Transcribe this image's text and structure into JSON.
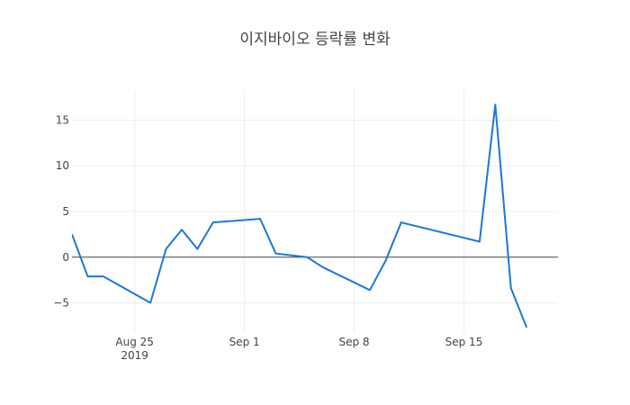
{
  "chart_data": {
    "type": "line",
    "title": "이지바이오 등락률 변화",
    "xlabel": "",
    "ylabel": "",
    "xlim": [
      "2019-08-21",
      "2019-09-21"
    ],
    "ylim": [
      -8.3,
      18.3
    ],
    "x_ticks": [
      {
        "date": "2019-08-25",
        "label": "Aug 25",
        "sublabel": "2019"
      },
      {
        "date": "2019-09-01",
        "label": "Sep 1",
        "sublabel": ""
      },
      {
        "date": "2019-09-08",
        "label": "Sep 8",
        "sublabel": ""
      },
      {
        "date": "2019-09-15",
        "label": "Sep 15",
        "sublabel": ""
      }
    ],
    "y_ticks": [
      {
        "value": -5,
        "label": "−5"
      },
      {
        "value": 0,
        "label": "0"
      },
      {
        "value": 5,
        "label": "5"
      },
      {
        "value": 10,
        "label": "10"
      },
      {
        "value": 15,
        "label": "15"
      }
    ],
    "grid": true,
    "zero_line": true,
    "color": "#1f77d4",
    "series": [
      {
        "x": [
          "2019-08-21",
          "2019-08-22",
          "2019-08-23",
          "2019-08-26",
          "2019-08-27",
          "2019-08-28",
          "2019-08-29",
          "2019-08-30",
          "2019-09-02",
          "2019-09-03",
          "2019-09-05",
          "2019-09-06",
          "2019-09-09",
          "2019-09-10",
          "2019-09-11",
          "2019-09-16",
          "2019-09-17",
          "2019-09-18",
          "2019-09-19"
        ],
        "y": [
          2.5,
          -2.1,
          -2.1,
          -5.0,
          0.9,
          3.0,
          0.9,
          3.8,
          4.2,
          0.4,
          0.0,
          -1.1,
          -3.6,
          -0.4,
          3.8,
          1.7,
          16.7,
          -3.4,
          -7.7
        ]
      }
    ]
  }
}
